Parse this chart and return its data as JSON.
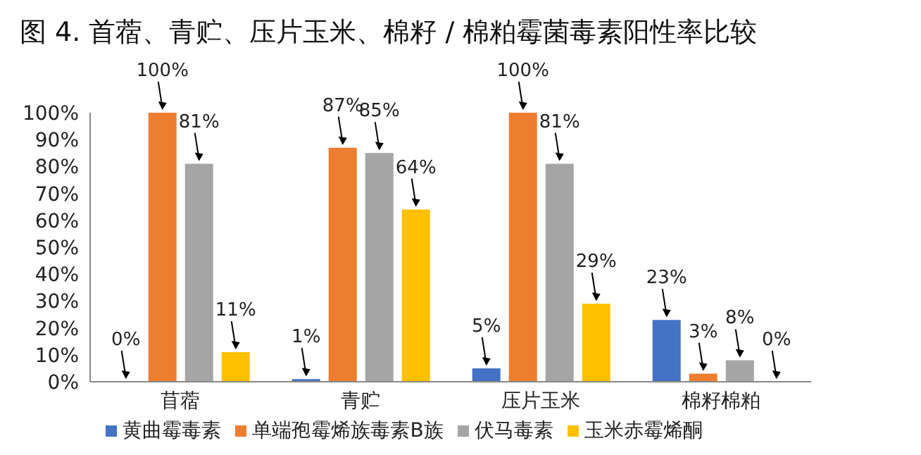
{
  "chart_data": {
    "type": "bar",
    "title": "图 4. 首蓿、青贮、压片玉米、棉籽 / 棉粕霉菌毒素阳性率比较",
    "categories": [
      "苜蓿",
      "青贮",
      "压片玉米",
      "棉籽棉粕"
    ],
    "series": [
      {
        "name": "黄曲霉毒素",
        "color": "#4472c4",
        "values": [
          0,
          1,
          5,
          23
        ]
      },
      {
        "name": "单端孢霉烯族毒素B族",
        "color": "#ed7d31",
        "values": [
          100,
          87,
          100,
          3
        ]
      },
      {
        "name": "伏马毒素",
        "color": "#a5a5a5",
        "values": [
          81,
          85,
          81,
          8
        ]
      },
      {
        "name": "玉米赤霉烯酮",
        "color": "#ffc000",
        "values": [
          11,
          64,
          29,
          0
        ]
      }
    ],
    "ylim": [
      0,
      100
    ],
    "yticks": [
      {
        "value": 0,
        "label": "0%"
      },
      {
        "value": 10,
        "label": "10%"
      },
      {
        "value": 20,
        "label": "20%"
      },
      {
        "value": 30,
        "label": "30%"
      },
      {
        "value": 40,
        "label": "40%"
      },
      {
        "value": 50,
        "label": "50%"
      },
      {
        "value": 60,
        "label": "60%"
      },
      {
        "value": 70,
        "label": "70%"
      },
      {
        "value": 80,
        "label": "80%"
      },
      {
        "value": 90,
        "label": "90%"
      },
      {
        "value": 100,
        "label": "100%"
      }
    ],
    "value_labels": [
      [
        "0%",
        "1%",
        "5%",
        "23%"
      ],
      [
        "100%",
        "87%",
        "100%",
        "3%"
      ],
      [
        "81%",
        "85%",
        "81%",
        "8%"
      ],
      [
        "11%",
        "64%",
        "29%",
        "0%"
      ]
    ],
    "grid": false,
    "legend": "bottom"
  }
}
